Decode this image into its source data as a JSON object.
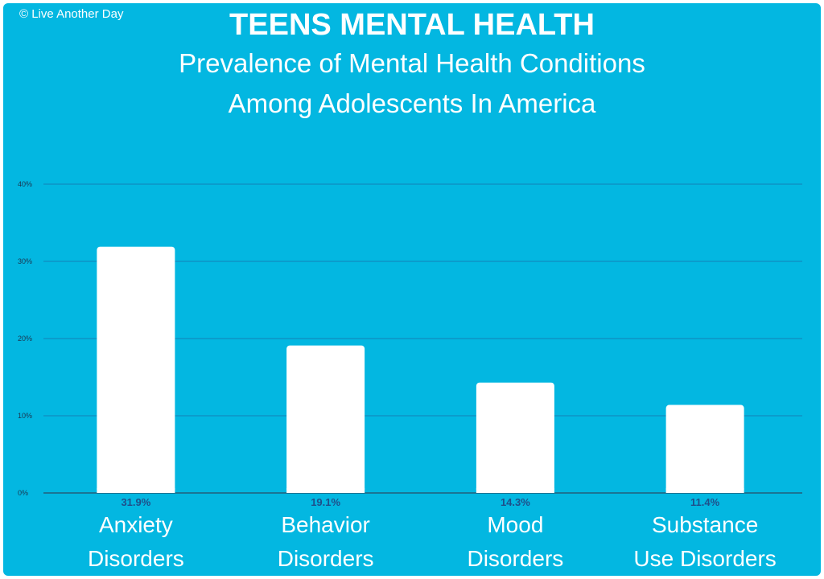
{
  "copyright": "© Live Another Day",
  "title": "TEENS MENTAL HEALTH",
  "subtitle_lines": [
    "Prevalence of Mental Health Conditions",
    "Among Adolescents In America"
  ],
  "colors": {
    "background": "#03b7e1",
    "bar": "#ffffff",
    "text": "#ffffff",
    "gridline": "#1a6fa8",
    "value_label": "#1f4f8a",
    "tick_label": "#1c3550"
  },
  "chart_data": {
    "type": "bar",
    "categories": [
      [
        "Anxiety",
        "Disorders"
      ],
      [
        "Behavior",
        "Disorders"
      ],
      [
        "Mood",
        "Disorders"
      ],
      [
        "Substance",
        "Use Disorders"
      ]
    ],
    "values": [
      31.9,
      19.1,
      14.3,
      11.4
    ],
    "value_labels": [
      "31.9%",
      "19.1%",
      "14.3%",
      "11.4%"
    ],
    "yticks": [
      0,
      10,
      20,
      30,
      40
    ],
    "ytick_labels": [
      "0%",
      "10%",
      "20%",
      "30%",
      "40%"
    ],
    "ylim": [
      0,
      40
    ],
    "grid": true,
    "legend": "none",
    "xlabel": "",
    "ylabel": ""
  }
}
